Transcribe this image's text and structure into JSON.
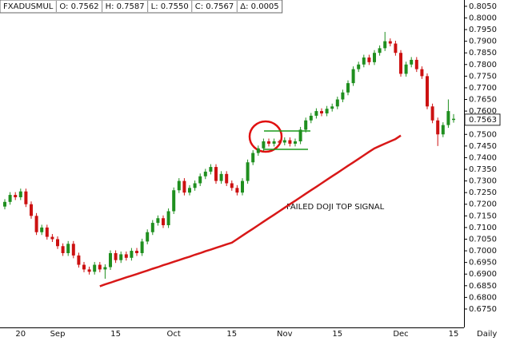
{
  "chart_data": {
    "type": "candlestick",
    "header": [
      "FXADUSMUL",
      "O: 0.7562",
      "H: 0.7587",
      "L: 0.7550",
      "C: 0.7567",
      "Δ: 0.0005"
    ],
    "annotation": "FAILED DOJI TOP SIGNAL",
    "x_label": "Daily",
    "categories": [
      null,
      null,
      null,
      "20",
      null,
      null,
      null,
      null,
      null,
      null,
      "Sep",
      null,
      null,
      null,
      null,
      null,
      null,
      null,
      null,
      null,
      null,
      "15",
      null,
      null,
      null,
      null,
      null,
      null,
      null,
      null,
      null,
      null,
      "Oct",
      null,
      null,
      null,
      null,
      null,
      null,
      null,
      null,
      null,
      null,
      "15",
      null,
      null,
      null,
      null,
      null,
      null,
      null,
      null,
      null,
      "Nov",
      null,
      null,
      null,
      null,
      null,
      null,
      null,
      null,
      null,
      "15",
      null,
      null,
      null,
      null,
      null,
      null,
      null,
      null,
      null,
      null,
      null,
      "Dec",
      null,
      null,
      null,
      null,
      null,
      null,
      null,
      null,
      null,
      "15"
    ],
    "open": [
      0.719,
      0.721,
      0.724,
      0.723,
      0.7255,
      0.72,
      0.715,
      0.708,
      0.71,
      0.706,
      0.705,
      0.702,
      0.699,
      0.703,
      0.698,
      0.694,
      0.692,
      0.691,
      0.694,
      0.692,
      0.693,
      0.699,
      0.696,
      0.6985,
      0.697,
      0.7,
      0.699,
      0.704,
      0.708,
      0.712,
      0.714,
      0.711,
      0.717,
      0.726,
      0.73,
      0.725,
      0.727,
      0.729,
      0.732,
      0.734,
      0.736,
      0.73,
      0.733,
      0.729,
      0.727,
      0.725,
      0.73,
      0.738,
      0.742,
      0.744,
      0.747,
      0.746,
      0.747,
      0.7465,
      0.7475,
      0.746,
      0.747,
      0.752,
      0.756,
      0.758,
      0.76,
      0.759,
      0.761,
      0.762,
      0.765,
      0.768,
      0.772,
      0.778,
      0.78,
      0.783,
      0.781,
      0.785,
      0.787,
      0.79,
      0.789,
      0.785,
      0.776,
      0.78,
      0.782,
      0.778,
      0.775,
      0.762,
      0.756,
      0.75,
      0.754,
      0.7562
    ],
    "high": [
      0.7222,
      0.7252,
      0.7252,
      0.7267,
      0.7267,
      0.7212,
      0.7162,
      0.7112,
      0.7112,
      0.7072,
      0.7062,
      0.7032,
      0.7042,
      0.7042,
      0.6992,
      0.6952,
      0.6932,
      0.6952,
      0.6952,
      0.6942,
      0.7002,
      0.7002,
      0.6997,
      0.6997,
      0.7012,
      0.7012,
      0.7052,
      0.7092,
      0.7132,
      0.7152,
      0.7152,
      0.7182,
      0.7272,
      0.7312,
      0.7312,
      0.7282,
      0.7302,
      0.7332,
      0.7352,
      0.7372,
      0.7372,
      0.7342,
      0.7342,
      0.7302,
      0.7282,
      0.7312,
      0.7392,
      0.7432,
      0.7452,
      0.7482,
      0.7482,
      0.7482,
      0.7477,
      0.7487,
      0.7487,
      0.7482,
      0.7532,
      0.7572,
      0.7592,
      0.7612,
      0.7612,
      0.7622,
      0.7632,
      0.7662,
      0.7692,
      0.7732,
      0.7792,
      0.7812,
      0.7842,
      0.7842,
      0.7862,
      0.7882,
      0.794,
      0.7912,
      0.7902,
      0.7862,
      0.7812,
      0.7832,
      0.7832,
      0.7792,
      0.7762,
      0.7632,
      0.7572,
      0.7552,
      0.765,
      0.7587
    ],
    "low": [
      0.7178,
      0.7198,
      0.7218,
      0.7218,
      0.7188,
      0.7138,
      0.7068,
      0.7068,
      0.7048,
      0.7038,
      0.7008,
      0.6978,
      0.6978,
      0.6968,
      0.6928,
      0.6908,
      0.6898,
      0.6898,
      0.6908,
      0.688,
      0.6918,
      0.6948,
      0.6948,
      0.6958,
      0.6958,
      0.6978,
      0.6978,
      0.7028,
      0.7068,
      0.7108,
      0.7098,
      0.7098,
      0.7158,
      0.7248,
      0.7238,
      0.7238,
      0.7258,
      0.7278,
      0.7308,
      0.7328,
      0.7288,
      0.7288,
      0.7278,
      0.7258,
      0.7238,
      0.7238,
      0.7288,
      0.7368,
      0.7408,
      0.7428,
      0.7448,
      0.7448,
      0.7453,
      0.7453,
      0.7448,
      0.7448,
      0.7458,
      0.7508,
      0.7548,
      0.7568,
      0.7578,
      0.7578,
      0.7598,
      0.7608,
      0.7638,
      0.7668,
      0.7708,
      0.7768,
      0.7788,
      0.7798,
      0.7798,
      0.7838,
      0.7858,
      0.7878,
      0.7838,
      0.7748,
      0.7748,
      0.7788,
      0.7768,
      0.7738,
      0.7608,
      0.7548,
      0.745,
      0.7488,
      0.7528,
      0.755
    ],
    "close": [
      0.721,
      0.724,
      0.723,
      0.7255,
      0.72,
      0.715,
      0.708,
      0.71,
      0.706,
      0.705,
      0.702,
      0.699,
      0.703,
      0.698,
      0.694,
      0.692,
      0.691,
      0.694,
      0.692,
      0.693,
      0.699,
      0.696,
      0.6985,
      0.697,
      0.7,
      0.699,
      0.704,
      0.708,
      0.712,
      0.714,
      0.711,
      0.717,
      0.726,
      0.73,
      0.725,
      0.727,
      0.729,
      0.732,
      0.734,
      0.736,
      0.73,
      0.733,
      0.729,
      0.727,
      0.725,
      0.73,
      0.738,
      0.742,
      0.744,
      0.747,
      0.746,
      0.747,
      0.7465,
      0.7475,
      0.746,
      0.747,
      0.752,
      0.756,
      0.758,
      0.76,
      0.759,
      0.761,
      0.762,
      0.765,
      0.768,
      0.772,
      0.778,
      0.78,
      0.783,
      0.781,
      0.785,
      0.787,
      0.79,
      0.789,
      0.785,
      0.776,
      0.78,
      0.782,
      0.778,
      0.775,
      0.762,
      0.756,
      0.75,
      0.754,
      0.76,
      0.7567
    ],
    "up_color": "#1f8f1f",
    "down_color": "#cc1111",
    "moving_average": {
      "color": "#d81818",
      "values": [
        null,
        null,
        null,
        null,
        null,
        null,
        null,
        null,
        null,
        null,
        null,
        null,
        null,
        null,
        null,
        null,
        null,
        null,
        0.6848,
        0.6856,
        0.6863,
        0.6871,
        0.6878,
        0.6886,
        0.6893,
        0.69,
        0.6908,
        0.6915,
        0.6923,
        0.693,
        0.6938,
        0.6945,
        0.6953,
        0.696,
        0.6968,
        0.6975,
        0.6983,
        0.699,
        0.6998,
        0.7005,
        0.7013,
        0.702,
        0.7028,
        0.7035,
        0.705,
        0.7065,
        0.708,
        0.7095,
        0.711,
        0.7125,
        0.714,
        0.7155,
        0.717,
        0.7185,
        0.72,
        0.7215,
        0.723,
        0.7245,
        0.726,
        0.7275,
        0.729,
        0.7305,
        0.732,
        0.7335,
        0.735,
        0.7365,
        0.738,
        0.7395,
        0.741,
        0.7425,
        0.744,
        0.745,
        0.746,
        0.747,
        0.748,
        0.7495,
        null,
        null,
        null,
        null,
        null,
        null,
        null,
        null,
        null,
        null
      ]
    },
    "last_price": 0.7563,
    "ylim": [
      0.6671,
      0.8077
    ],
    "yticks": [
      {
        "value": 0.675,
        "label": "0.6750"
      },
      {
        "value": 0.68,
        "label": "0.6800"
      },
      {
        "value": 0.685,
        "label": "0.6850"
      },
      {
        "value": 0.69,
        "label": "0.6900"
      },
      {
        "value": 0.695,
        "label": "0.6950"
      },
      {
        "value": 0.7,
        "label": "0.7000"
      },
      {
        "value": 0.705,
        "label": "0.7050"
      },
      {
        "value": 0.71,
        "label": "0.7100"
      },
      {
        "value": 0.715,
        "label": "0.7150"
      },
      {
        "value": 0.72,
        "label": "0.7200"
      },
      {
        "value": 0.725,
        "label": "0.7250"
      },
      {
        "value": 0.73,
        "label": "0.7300"
      },
      {
        "value": 0.735,
        "label": "0.7350"
      },
      {
        "value": 0.74,
        "label": "0.7400"
      },
      {
        "value": 0.745,
        "label": "0.7450"
      },
      {
        "value": 0.75,
        "label": "0.7500"
      },
      {
        "value": 0.755,
        "label": "0.7550"
      },
      {
        "value": 0.76,
        "label": "0.7600"
      },
      {
        "value": 0.765,
        "label": "0.7650"
      },
      {
        "value": 0.77,
        "label": "0.7700"
      },
      {
        "value": 0.775,
        "label": "0.7750"
      },
      {
        "value": 0.78,
        "label": "0.7800"
      },
      {
        "value": 0.785,
        "label": "0.7850"
      },
      {
        "value": 0.79,
        "label": "0.7900"
      },
      {
        "value": 0.795,
        "label": "0.7950"
      },
      {
        "value": 0.8,
        "label": "0.8000"
      },
      {
        "value": 0.805,
        "label": "0.8050"
      }
    ]
  }
}
